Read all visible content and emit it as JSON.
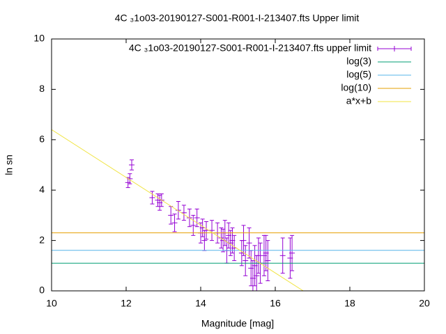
{
  "chart_data": {
    "type": "scatter",
    "title": "4C ₃1o03-20190127-S001-R001-I-213407.fts Upper limit",
    "x_label": "Magnitude [mag]",
    "y_label": "ln sn",
    "xlim": [
      10,
      20
    ],
    "xticks": [
      10,
      12,
      14,
      16,
      18,
      20
    ],
    "ylim": [
      0,
      10
    ],
    "yticks": [
      0,
      2,
      4,
      6,
      8,
      10
    ],
    "legend": "upper right",
    "series": [
      {
        "name": "4C ₃1o03-20190127-S001-R001-I-213407.fts upper limit",
        "kind": "errorbar",
        "color": "#9400d3",
        "x": [
          12.05,
          12.1,
          12.15,
          12.7,
          12.85,
          12.9,
          12.95,
          13.2,
          13.3,
          13.4,
          13.55,
          13.7,
          13.8,
          13.9,
          14.0,
          14.05,
          14.1,
          14.15,
          14.3,
          14.45,
          14.55,
          14.6,
          14.65,
          14.7,
          14.75,
          14.8,
          14.85,
          14.9,
          15.1,
          15.15,
          15.2,
          15.3,
          15.35,
          15.4,
          15.45,
          15.5,
          15.55,
          15.6,
          15.7,
          15.75,
          15.8,
          16.2,
          16.4,
          16.45
        ],
        "values": [
          4.3,
          4.45,
          5.0,
          3.7,
          3.6,
          3.5,
          3.6,
          3.0,
          2.7,
          3.2,
          3.1,
          2.9,
          2.6,
          2.9,
          2.3,
          2.5,
          2.0,
          2.4,
          2.4,
          2.3,
          2.1,
          2.0,
          2.3,
          1.6,
          2.2,
          1.9,
          2.0,
          1.7,
          1.5,
          2.0,
          1.2,
          1.9,
          0.9,
          0.5,
          1.0,
          0.6,
          1.4,
          1.1,
          1.4,
          1.5,
          1.2,
          1.4,
          1.3,
          1.5
        ],
        "errors": [
          0.2,
          0.2,
          0.2,
          0.25,
          0.25,
          0.3,
          0.25,
          0.35,
          0.35,
          0.35,
          0.3,
          0.35,
          0.4,
          0.35,
          0.4,
          0.35,
          0.4,
          0.35,
          0.4,
          0.4,
          0.4,
          0.45,
          0.5,
          0.5,
          0.5,
          0.5,
          0.5,
          0.5,
          0.5,
          0.6,
          0.6,
          0.6,
          0.7,
          0.7,
          0.8,
          0.8,
          0.7,
          0.8,
          0.8,
          0.7,
          0.8,
          0.7,
          0.8,
          0.7
        ]
      },
      {
        "name": "log(3)",
        "kind": "line",
        "color": "#009e73",
        "x": [
          10,
          20
        ],
        "values": [
          1.0986,
          1.0986
        ]
      },
      {
        "name": "log(5)",
        "kind": "line",
        "color": "#56b4e9",
        "x": [
          10,
          20
        ],
        "values": [
          1.6094,
          1.6094
        ]
      },
      {
        "name": "log(10)",
        "kind": "line",
        "color": "#e69f00",
        "x": [
          10,
          20
        ],
        "values": [
          2.3026,
          2.3026
        ]
      },
      {
        "name": "a*x+b",
        "kind": "line",
        "color": "#f0e442",
        "x": [
          10,
          16.75
        ],
        "values": [
          6.4,
          0
        ]
      }
    ]
  }
}
